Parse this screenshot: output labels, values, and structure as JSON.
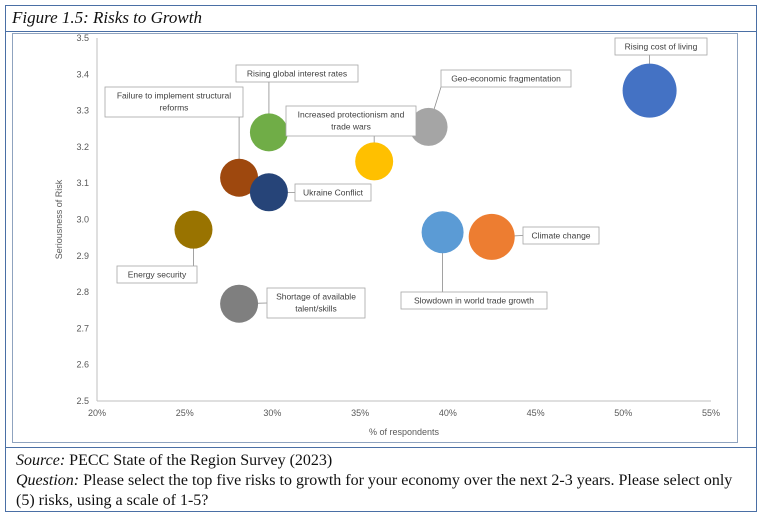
{
  "figure": {
    "title": "Figure 1.5: Risks to Growth"
  },
  "footer": {
    "source_label": "Source:",
    "source_text": " PECC State of the Region Survey (2023)",
    "question_label": "Question:",
    "question_text": " Please select the top five risks to growth for your economy over the next 2-3 years. Please select only (5) risks, using a scale of 1-5?"
  },
  "chart_data": {
    "type": "scatter",
    "variant": "bubble",
    "xlabel": "% of respondents",
    "ylabel": "Seriousness of Risk",
    "xlim": [
      0.2,
      0.55
    ],
    "ylim": [
      2.5,
      3.5
    ],
    "x_ticks": [
      0.2,
      0.25,
      0.3,
      0.35,
      0.4,
      0.45,
      0.5,
      0.55
    ],
    "x_tick_labels": [
      "20%",
      "25%",
      "30%",
      "35%",
      "40%",
      "45%",
      "50%",
      "55%"
    ],
    "y_ticks": [
      2.5,
      2.6,
      2.7,
      2.8,
      2.9,
      3.0,
      3.1,
      3.2,
      3.3,
      3.4,
      3.5
    ],
    "y_tick_labels": [
      "2.5",
      "2.6",
      "2.7",
      "2.8",
      "2.9",
      "3.0",
      "3.1",
      "3.2",
      "3.3",
      "3.4",
      "3.5"
    ],
    "grid": false,
    "legend": "none",
    "points": [
      {
        "label": "Rising cost of living",
        "x": 0.515,
        "y": 3.355,
        "color": "#4472c4"
      },
      {
        "label": "Geo-economic fragmentation",
        "x": 0.389,
        "y": 3.255,
        "color": "#a5a5a5"
      },
      {
        "label": "Rising global interest rates",
        "x": 0.298,
        "y": 3.24,
        "color": "#70ad47"
      },
      {
        "label": "Failure to implement structural reforms",
        "x": 0.281,
        "y": 3.115,
        "color": "#9e480e"
      },
      {
        "label": "Increased protectionism and trade wars",
        "x": 0.358,
        "y": 3.16,
        "color": "#ffc000"
      },
      {
        "label": "Ukraine Conflict",
        "x": 0.298,
        "y": 3.075,
        "color": "#264478"
      },
      {
        "label": "Energy security",
        "x": 0.255,
        "y": 2.972,
        "color": "#997300"
      },
      {
        "label": "Slowdown in world trade growth",
        "x": 0.397,
        "y": 2.965,
        "color": "#5b9bd5"
      },
      {
        "label": "Climate change",
        "x": 0.425,
        "y": 2.952,
        "color": "#ed7d31"
      },
      {
        "label": "Shortage of available talent/skills",
        "x": 0.281,
        "y": 2.768,
        "color": "#7f7f7f"
      }
    ]
  }
}
